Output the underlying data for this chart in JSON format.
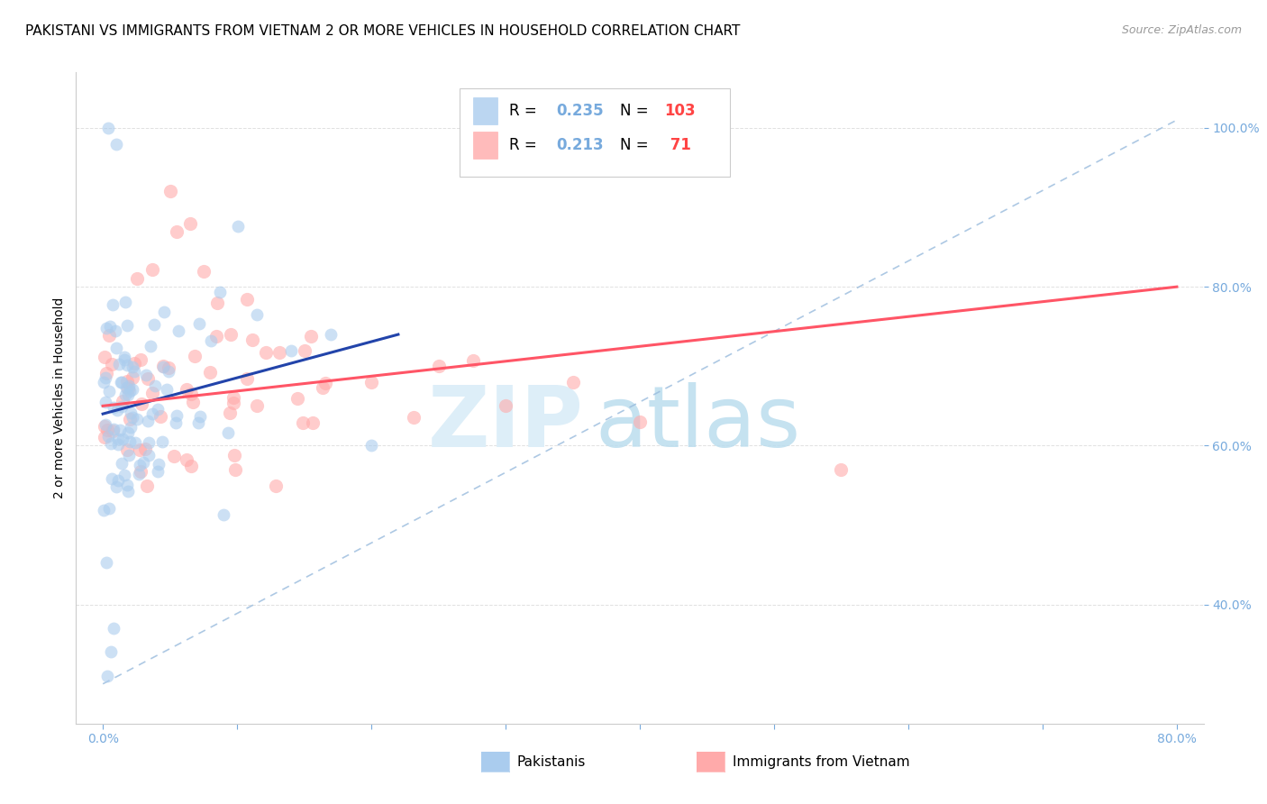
{
  "title": "PAKISTANI VS IMMIGRANTS FROM VIETNAM 2 OR MORE VEHICLES IN HOUSEHOLD CORRELATION CHART",
  "source": "Source: ZipAtlas.com",
  "ylabel": "2 or more Vehicles in Household",
  "color_blue": "#AACCEE",
  "color_blue_edge": "#AACCEE",
  "color_pink": "#FFAAAA",
  "color_pink_edge": "#FFAAAA",
  "color_blue_line": "#2244AA",
  "color_pink_line": "#FF5566",
  "color_dashed": "#99BBDD",
  "color_axis_ticks": "#77AADD",
  "color_grid": "#DDDDDD",
  "legend_r1": "0.235",
  "legend_n1": "103",
  "legend_r2": "0.213",
  "legend_n2": " 71",
  "legend_bottom_1": "Pakistanis",
  "legend_bottom_2": "Immigrants from Vietnam",
  "title_fontsize": 11,
  "source_fontsize": 9,
  "tick_fontsize": 10,
  "ylabel_fontsize": 10,
  "legend_fontsize": 12
}
